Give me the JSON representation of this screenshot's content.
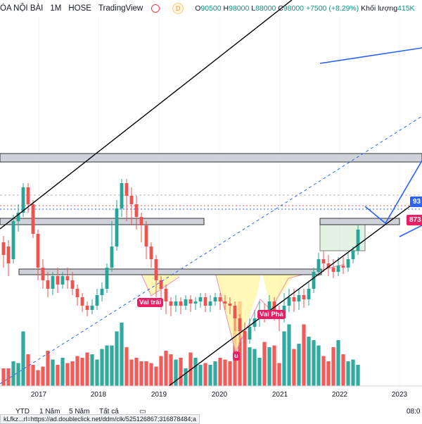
{
  "header": {
    "symbol": "ÓA NỘI BÀI",
    "interval": "1M",
    "exchange": "HOSE",
    "brand": "TradingView",
    "status_icon": "red-dot-icon",
    "data_badge": "D",
    "ohlc_open_label": "O",
    "ohlc_open": "90500",
    "ohlc_high_label": "H",
    "ohlc_high": "98000",
    "ohlc_low_label": "L",
    "ohlc_low": "88000",
    "ohlc_close_label": "C",
    "ohlc_close": "98000",
    "change": "+7500 (+8.29%)",
    "volume_label": "Khối lượng",
    "volume_value": "415K"
  },
  "annotations": {
    "left_label": "Vai trái",
    "right_label": "Vai Phả",
    "head_label": "u"
  },
  "price_tags": {
    "upper": "93",
    "lower": "873"
  },
  "x_axis": {
    "labels": [
      "2017",
      "2018",
      "2019",
      "2020",
      "2021",
      "2022",
      "2023"
    ]
  },
  "footer": {
    "ranges": [
      "YTD",
      "1 Năm",
      "5 Năm",
      "Tất cả"
    ],
    "time": "08:0",
    "url": "kLfkz...rl=https://ad.doubleclick.net/ddm/clk/525126867;316878484;a"
  },
  "colors": {
    "up": "#26a69a",
    "down": "#ef5350",
    "trend": "#000000",
    "projection": "#2962ff",
    "shoulder_badge": "#e91e63",
    "tag_blue": "#2962ff",
    "tag_red": "#e91e63"
  },
  "chart_data": {
    "type": "candlestick",
    "x_labels": [
      "2017",
      "2018",
      "2019",
      "2020",
      "2021",
      "2022",
      "2023"
    ],
    "candles": [
      [
        0.52,
        0.46,
        0.4,
        0.55
      ],
      [
        0.5,
        0.42,
        0.36,
        0.53
      ],
      [
        0.44,
        0.62,
        0.42,
        0.65
      ],
      [
        0.62,
        0.66,
        0.57,
        0.7
      ],
      [
        0.66,
        0.78,
        0.64,
        0.8
      ],
      [
        0.78,
        0.7,
        0.66,
        0.8
      ],
      [
        0.7,
        0.56,
        0.54,
        0.72
      ],
      [
        0.56,
        0.4,
        0.34,
        0.58
      ],
      [
        0.4,
        0.34,
        0.3,
        0.44
      ],
      [
        0.34,
        0.3,
        0.26,
        0.38
      ],
      [
        0.3,
        0.36,
        0.27,
        0.38
      ],
      [
        0.36,
        0.32,
        0.28,
        0.4
      ],
      [
        0.32,
        0.36,
        0.3,
        0.38
      ],
      [
        0.36,
        0.34,
        0.3,
        0.4
      ],
      [
        0.34,
        0.3,
        0.27,
        0.38
      ],
      [
        0.3,
        0.26,
        0.22,
        0.32
      ],
      [
        0.26,
        0.22,
        0.19,
        0.28
      ],
      [
        0.22,
        0.2,
        0.17,
        0.24
      ],
      [
        0.2,
        0.22,
        0.18,
        0.25
      ],
      [
        0.22,
        0.27,
        0.2,
        0.3
      ],
      [
        0.27,
        0.3,
        0.24,
        0.33
      ],
      [
        0.3,
        0.4,
        0.28,
        0.42
      ],
      [
        0.4,
        0.5,
        0.38,
        0.62
      ],
      [
        0.5,
        0.68,
        0.48,
        0.72
      ],
      [
        0.68,
        0.8,
        0.64,
        0.82
      ],
      [
        0.8,
        0.74,
        0.62,
        0.82
      ],
      [
        0.74,
        0.7,
        0.6,
        0.78
      ],
      [
        0.7,
        0.64,
        0.58,
        0.74
      ],
      [
        0.64,
        0.6,
        0.52,
        0.66
      ],
      [
        0.6,
        0.5,
        0.44,
        0.62
      ],
      [
        0.5,
        0.44,
        0.4,
        0.52
      ],
      [
        0.44,
        0.34,
        0.26,
        0.46
      ],
      [
        0.34,
        0.3,
        0.2,
        0.36
      ],
      [
        0.3,
        0.24,
        0.18,
        0.32
      ],
      [
        0.24,
        0.22,
        0.17,
        0.26
      ],
      [
        0.22,
        0.24,
        0.19,
        0.27
      ],
      [
        0.24,
        0.22,
        0.18,
        0.26
      ],
      [
        0.22,
        0.25,
        0.2,
        0.27
      ],
      [
        0.25,
        0.23,
        0.19,
        0.27
      ],
      [
        0.23,
        0.24,
        0.2,
        0.26
      ],
      [
        0.24,
        0.26,
        0.21,
        0.28
      ],
      [
        0.26,
        0.22,
        0.19,
        0.28
      ],
      [
        0.22,
        0.24,
        0.19,
        0.27
      ],
      [
        0.24,
        0.26,
        0.22,
        0.28
      ],
      [
        0.26,
        0.24,
        0.2,
        0.28
      ],
      [
        0.24,
        0.23,
        0.2,
        0.27
      ],
      [
        0.23,
        0.22,
        0.18,
        0.26
      ],
      [
        0.22,
        0.16,
        0.1,
        0.24
      ],
      [
        0.16,
        0.1,
        0.04,
        0.18
      ],
      [
        0.1,
        0.06,
        0.02,
        0.14
      ],
      [
        0.06,
        0.12,
        0.04,
        0.16
      ],
      [
        0.12,
        0.16,
        0.1,
        0.2
      ],
      [
        0.16,
        0.2,
        0.12,
        0.24
      ],
      [
        0.2,
        0.18,
        0.14,
        0.23
      ],
      [
        0.18,
        0.24,
        0.16,
        0.27
      ],
      [
        0.24,
        0.2,
        0.15,
        0.26
      ],
      [
        0.2,
        0.16,
        0.1,
        0.22
      ],
      [
        0.16,
        0.22,
        0.14,
        0.28
      ],
      [
        0.22,
        0.26,
        0.19,
        0.3
      ],
      [
        0.26,
        0.24,
        0.19,
        0.3
      ],
      [
        0.24,
        0.27,
        0.2,
        0.3
      ],
      [
        0.27,
        0.25,
        0.21,
        0.3
      ],
      [
        0.25,
        0.3,
        0.22,
        0.33
      ],
      [
        0.3,
        0.38,
        0.28,
        0.4
      ],
      [
        0.38,
        0.44,
        0.36,
        0.47
      ],
      [
        0.44,
        0.42,
        0.38,
        0.48
      ],
      [
        0.42,
        0.4,
        0.36,
        0.46
      ],
      [
        0.4,
        0.38,
        0.35,
        0.44
      ],
      [
        0.38,
        0.41,
        0.36,
        0.45
      ],
      [
        0.41,
        0.4,
        0.37,
        0.45
      ],
      [
        0.4,
        0.44,
        0.38,
        0.47
      ],
      [
        0.44,
        0.48,
        0.42,
        0.5
      ],
      [
        0.48,
        0.58,
        0.46,
        0.6
      ]
    ],
    "volumes": [
      0.1,
      0.1,
      0.14,
      0.13,
      0.31,
      0.18,
      0.12,
      0.09,
      0.11,
      0.2,
      0.15,
      0.12,
      0.16,
      0.13,
      0.14,
      0.17,
      0.16,
      0.19,
      0.18,
      0.15,
      0.21,
      0.23,
      0.23,
      0.31,
      0.36,
      0.22,
      0.15,
      0.16,
      0.14,
      0.14,
      0.13,
      0.11,
      0.17,
      0.2,
      0.18,
      0.15,
      0.16,
      0.1,
      0.19,
      0.16,
      0.12,
      0.13,
      0.12,
      0.14,
      0.16,
      0.15,
      0.14,
      0.42,
      0.48,
      0.31,
      0.22,
      0.21,
      0.16,
      0.25,
      0.22,
      0.23,
      0.13,
      0.31,
      0.35,
      0.21,
      0.24,
      0.35,
      0.28,
      0.26,
      0.23,
      0.17,
      0.14,
      0.22,
      0.26,
      0.18,
      0.14,
      0.15,
      0.12
    ]
  }
}
